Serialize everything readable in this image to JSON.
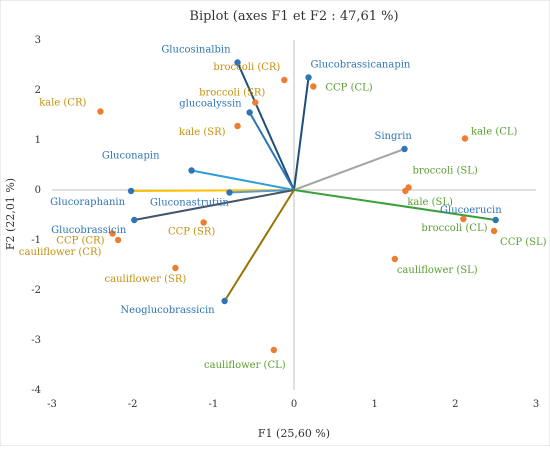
{
  "chart_data": {
    "type": "scatter",
    "title": "Biplot (axes F1 et F2 : 47,61 %)",
    "xlabel": "F1 (25,60 %)",
    "ylabel": "F2 (22,01 %)",
    "xlim": [
      -3,
      3
    ],
    "ylim": [
      -4,
      3
    ],
    "xticks": [
      "-3",
      "-2",
      "-1",
      "0",
      "1",
      "2",
      "3"
    ],
    "yticks": [
      "-4",
      "-3",
      "-2",
      "-1",
      "0",
      "1",
      "2",
      "3"
    ],
    "grid": false,
    "colors": {
      "variable_point": "#2e75b6",
      "variable_label": "#2e75b6",
      "observation_point": "#ed7d31",
      "observation_label_orange": "#c5900a",
      "observation_label_green": "#5a9e2f"
    },
    "variables": [
      {
        "name": "Glucosinalbin",
        "x": -0.7,
        "y": 2.55,
        "color": "#1f4e79"
      },
      {
        "name": "Glucobrassicanapin",
        "x": 0.18,
        "y": 2.25,
        "color": "#1f4e79"
      },
      {
        "name": "glucoalyssin",
        "x": -0.55,
        "y": 1.55,
        "color": "#2e75b6"
      },
      {
        "name": "Singrin",
        "x": 1.37,
        "y": 0.82,
        "color": "#a5a5a5"
      },
      {
        "name": "Gluconapin",
        "x": -1.27,
        "y": 0.39,
        "color": "#2e9fd8"
      },
      {
        "name": "Glucoraphanin",
        "x": -2.02,
        "y": -0.02,
        "color": "#ffc000"
      },
      {
        "name": "Gluconastrutiin",
        "x": -0.8,
        "y": -0.05,
        "color": "#5b9bd5"
      },
      {
        "name": "Glucobrassicin",
        "x": -1.98,
        "y": -0.6,
        "color": "#44546a"
      },
      {
        "name": "Glucoerucin",
        "x": 2.5,
        "y": -0.6,
        "color": "#3aa03a"
      },
      {
        "name": "Neoglucobrassicin",
        "x": -0.86,
        "y": -2.22,
        "color": "#997300"
      }
    ],
    "observations": [
      {
        "name": "broccoli (CR)",
        "x": -0.12,
        "y": 2.2,
        "label_color": "#c5900a"
      },
      {
        "name": "CCP (CL)",
        "x": 0.24,
        "y": 2.07,
        "label_color": "#5a9e2f"
      },
      {
        "name": "broccoli (SR)",
        "x": -0.48,
        "y": 1.75,
        "label_color": "#c5900a"
      },
      {
        "name": "kale (CR)",
        "x": -2.4,
        "y": 1.57,
        "label_color": "#c5900a"
      },
      {
        "name": "kale (SR)",
        "x": -0.7,
        "y": 1.28,
        "label_color": "#c5900a"
      },
      {
        "name": "kale (CL)",
        "x": 2.12,
        "y": 1.03,
        "label_color": "#5a9e2f"
      },
      {
        "name": "broccoli (SL)",
        "x": 1.42,
        "y": 0.05,
        "label_color": "#5a9e2f"
      },
      {
        "name": "kale (SL)",
        "x": 1.38,
        "y": -0.02,
        "label_color": "#5a9e2f"
      },
      {
        "name": "broccoli (CL)",
        "x": 2.1,
        "y": -0.58,
        "label_color": "#5a9e2f"
      },
      {
        "name": "CCP (SL)",
        "x": 2.48,
        "y": -0.82,
        "label_color": "#5a9e2f"
      },
      {
        "name": "CCP (SR)",
        "x": -1.12,
        "y": -0.65,
        "label_color": "#c5900a"
      },
      {
        "name": "CCP (CR)",
        "x": -2.25,
        "y": -0.87,
        "label_color": "#c5900a"
      },
      {
        "name": "cauliflower (CR)",
        "x": -2.18,
        "y": -1.0,
        "label_color": "#c5900a"
      },
      {
        "name": "cauliflower (SR)",
        "x": -1.47,
        "y": -1.56,
        "label_color": "#c5900a"
      },
      {
        "name": "cauliflower (SL)",
        "x": 1.25,
        "y": -1.38,
        "label_color": "#5a9e2f"
      },
      {
        "name": "cauliflower (CL)",
        "x": -0.25,
        "y": -3.2,
        "label_color": "#5a9e2f"
      }
    ]
  }
}
